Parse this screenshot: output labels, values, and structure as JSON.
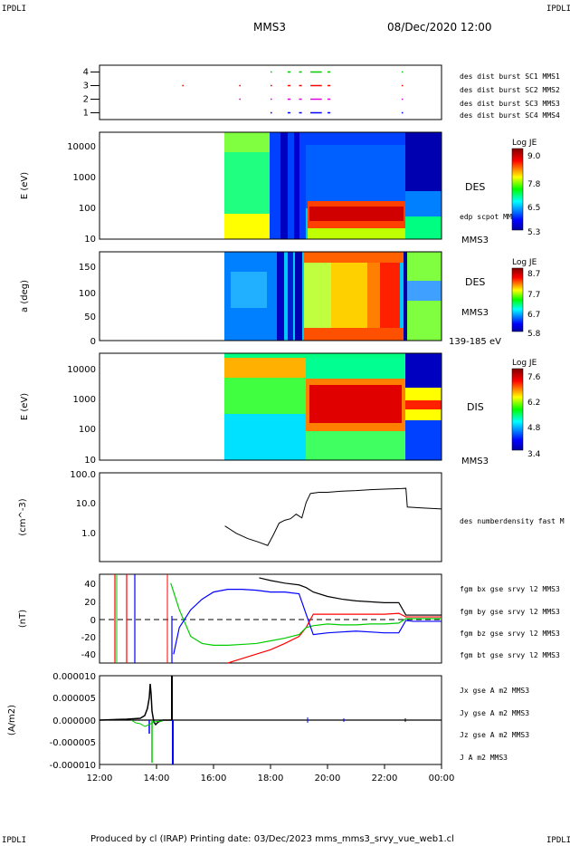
{
  "corner_label": "IPDLI",
  "header": {
    "mission": "MMS3",
    "datetime": "08/Dec/2020 12:00"
  },
  "footer": "Produced by cl (IRAP)   Printing date: 03/Dec/2023   mms_mms3_srvy_vue_web1.cl",
  "colors": {
    "red": "#ff0000",
    "green": "#00cc00",
    "blue": "#0000ff",
    "magenta": "#e000e0",
    "black": "#000000"
  },
  "time_axis": {
    "ticks": [
      "12:00",
      "14:00",
      "16:00",
      "18:00",
      "20:00",
      "22:00",
      "00:00"
    ]
  },
  "chart_data": [
    {
      "type": "line",
      "panel": "burst availability",
      "yticks": [
        "1",
        "2",
        "3",
        "4"
      ],
      "ylim": [
        0.5,
        4.5
      ],
      "series": [
        {
          "name": "des dist burst SC1 MMS1",
          "color": "#0000ff",
          "y": 1,
          "segments": [
            [
              18.0,
              18.05
            ],
            [
              18.6,
              18.7
            ],
            [
              19.0,
              19.1
            ],
            [
              19.4,
              19.8
            ],
            [
              20.0,
              20.1
            ],
            [
              22.6,
              22.65
            ]
          ]
        },
        {
          "name": "des dist burst SC2 MMS2",
          "color": "#e000e0",
          "y": 2,
          "segments": [
            [
              16.9,
              16.95
            ],
            [
              18.0,
              18.05
            ],
            [
              18.6,
              18.7
            ],
            [
              19.0,
              19.1
            ],
            [
              19.4,
              19.8
            ],
            [
              20.0,
              20.1
            ],
            [
              22.6,
              22.65
            ]
          ]
        },
        {
          "name": "des dist burst SC3 MMS3",
          "color": "#ff0000",
          "y": 3,
          "segments": [
            [
              14.9,
              14.95
            ],
            [
              16.9,
              16.95
            ],
            [
              18.0,
              18.05
            ],
            [
              18.6,
              18.7
            ],
            [
              19.0,
              19.1
            ],
            [
              19.4,
              19.8
            ],
            [
              20.0,
              20.1
            ],
            [
              22.6,
              22.65
            ]
          ]
        },
        {
          "name": "des dist burst SC4 MMS4",
          "color": "#00cc00",
          "y": 4,
          "segments": [
            [
              18.0,
              18.05
            ],
            [
              18.6,
              18.7
            ],
            [
              19.0,
              19.1
            ],
            [
              19.4,
              19.8
            ],
            [
              20.0,
              20.1
            ],
            [
              22.6,
              22.65
            ]
          ]
        }
      ]
    },
    {
      "type": "heatmap",
      "panel": "electron energy spectrogram",
      "ylabel": "E (eV)",
      "yticks": [
        "10",
        "100",
        "1000",
        "10000"
      ],
      "instrument": "DES",
      "spacecraft": "MMS3",
      "overlay_label": "edp scpot MMS3",
      "colorbar": {
        "title": "Log JE",
        "ticks": [
          "9.0",
          "7.8",
          "6.5",
          "5.3"
        ],
        "range": [
          5.3,
          9.0
        ]
      }
    },
    {
      "type": "heatmap",
      "panel": "electron pitch angle",
      "ylabel": "a (deg)",
      "yticks": [
        "0",
        "50",
        "100",
        "150"
      ],
      "instrument": "DES",
      "spacecraft": "MMS3",
      "energy_band": "139-185 eV",
      "colorbar": {
        "title": "Log JE",
        "ticks": [
          "8.7",
          "7.7",
          "6.7",
          "5.8"
        ],
        "range": [
          5.8,
          8.7
        ]
      }
    },
    {
      "type": "heatmap",
      "panel": "ion energy spectrogram",
      "ylabel": "E (eV)",
      "yticks": [
        "10",
        "100",
        "1000",
        "10000"
      ],
      "instrument": "DIS",
      "spacecraft": "MMS3",
      "colorbar": {
        "title": "Log JE",
        "ticks": [
          "7.6",
          "6.2",
          "4.8",
          "3.4"
        ],
        "range": [
          3.4,
          7.6
        ]
      }
    },
    {
      "type": "line",
      "panel": "density",
      "ylabel": "(cm^-3)",
      "yticks": [
        "1.0",
        "10.0",
        "100.0"
      ],
      "series": [
        {
          "name": "des numberdensity fast M",
          "color": "#000000",
          "x": [
            16.4,
            16.8,
            17.2,
            17.6,
            17.9,
            18.1,
            18.3,
            18.5,
            18.7,
            18.9,
            19.1,
            19.25,
            19.4,
            19.7,
            20.0,
            20.5,
            21.0,
            21.5,
            22.0,
            22.5,
            22.75,
            22.8,
            23.3,
            24.0
          ],
          "y": [
            1.6,
            0.9,
            0.6,
            0.45,
            0.35,
            0.8,
            2.0,
            2.5,
            2.8,
            4.0,
            3.0,
            10.0,
            20.0,
            22.0,
            22.0,
            24.0,
            25.0,
            27.0,
            28.0,
            29.0,
            30.0,
            7.0,
            6.5,
            6.0
          ]
        }
      ]
    },
    {
      "type": "line",
      "panel": "magnetic field",
      "ylabel": "(nT)",
      "yticks": [
        "-40",
        "-20",
        "0",
        "20",
        "40"
      ],
      "ylim": [
        -50,
        50
      ],
      "series": [
        {
          "name": "fgm bx gse srvy l2 MMS3",
          "color": "#ff0000",
          "x": [
            16.5,
            17.0,
            17.5,
            18.0,
            18.5,
            19.0,
            19.25,
            19.5,
            20.0,
            20.5,
            21.0,
            21.5,
            22.0,
            22.5,
            22.75,
            23.0,
            24.0
          ],
          "y": [
            -50,
            -45,
            -40,
            -35,
            -28,
            -20,
            -10,
            5,
            5,
            5,
            5,
            5,
            5,
            6,
            2,
            2,
            2
          ]
        },
        {
          "name": "fgm by gse srvy l2 MMS3",
          "color": "#00cc00",
          "x": [
            14.5,
            14.8,
            15.2,
            15.6,
            16.0,
            16.5,
            17.0,
            17.5,
            18.0,
            18.5,
            19.0,
            19.25,
            19.5,
            20.0,
            20.5,
            21.0,
            21.5,
            22.0,
            22.5,
            22.75,
            23.0,
            24.0
          ],
          "y": [
            40,
            10,
            -20,
            -28,
            -30,
            -30,
            -29,
            -28,
            -25,
            -22,
            -18,
            -10,
            -8,
            -6,
            -7,
            -7,
            -6,
            -6,
            -5,
            0,
            0,
            0
          ]
        },
        {
          "name": "fgm bz gse srvy l2 MMS3",
          "color": "#0000ff",
          "x": [
            14.6,
            14.8,
            15.2,
            15.6,
            16.0,
            16.5,
            17.0,
            17.5,
            18.0,
            18.5,
            19.0,
            19.25,
            19.5,
            20.0,
            20.5,
            21.0,
            21.5,
            22.0,
            22.5,
            22.75,
            23.0,
            24.0
          ],
          "y": [
            -40,
            -10,
            10,
            22,
            30,
            33,
            33,
            32,
            30,
            30,
            28,
            5,
            -18,
            -16,
            -15,
            -14,
            -15,
            -16,
            -16,
            -2,
            -3,
            -3
          ]
        },
        {
          "name": "fgm bt gse srvy l2 MMS3",
          "color": "#000000",
          "x": [
            17.6,
            18.0,
            18.5,
            19.0,
            19.25,
            19.5,
            20.0,
            20.5,
            21.0,
            21.5,
            22.0,
            22.5,
            22.75,
            23.0,
            24.0
          ],
          "y": [
            46,
            43,
            40,
            38,
            35,
            30,
            25,
            22,
            20,
            19,
            18,
            18,
            4,
            4,
            4
          ]
        }
      ]
    },
    {
      "type": "line",
      "panel": "current density",
      "ylabel": "(A/m2)",
      "yticks": [
        "-0.000010",
        "-0.000005",
        "0.000000",
        "0.000005",
        "0.000010"
      ],
      "ylim": [
        -1e-05,
        1e-05
      ],
      "series": [
        {
          "name": "Jx gse A m2 MMS3",
          "color": "#ff0000"
        },
        {
          "name": "Jy gse A m2 MMS3",
          "color": "#00cc00"
        },
        {
          "name": "Jz gse A m2 MMS3",
          "color": "#0000ff"
        },
        {
          "name": "J A m2 MMS3",
          "color": "#000000"
        }
      ]
    }
  ]
}
